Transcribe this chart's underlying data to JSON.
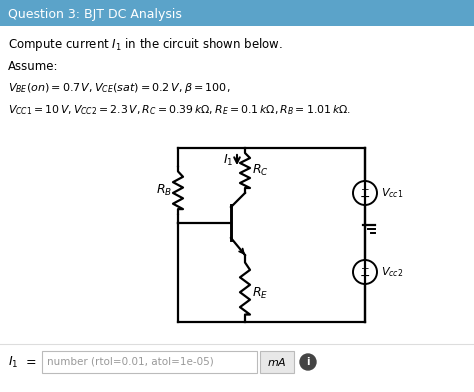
{
  "title": "Question 3: BJT DC Analysis",
  "title_bg": "#5ba3c9",
  "title_fg": "white",
  "compute_text": "Compute current $I_1$ in the circuit shown below.",
  "assume_text": "Assume:",
  "line1": "$V_{BE}(on) = 0.7\\,V, V_{CE}(sat) = 0.2\\,V, \\beta = 100,$",
  "line2": "$V_{CC1} = 10\\,V, V_{CC2} = 2.3\\,V, R_C = 0.39\\,k\\Omega, R_E = 0.1\\,k\\Omega, R_B = 1.01\\,k\\Omega.$",
  "bottom_label_plain": "I",
  "bottom_label_sub": "1",
  "placeholder": "number (rtol=0.01, atol=1e-05)",
  "unit": "mA"
}
